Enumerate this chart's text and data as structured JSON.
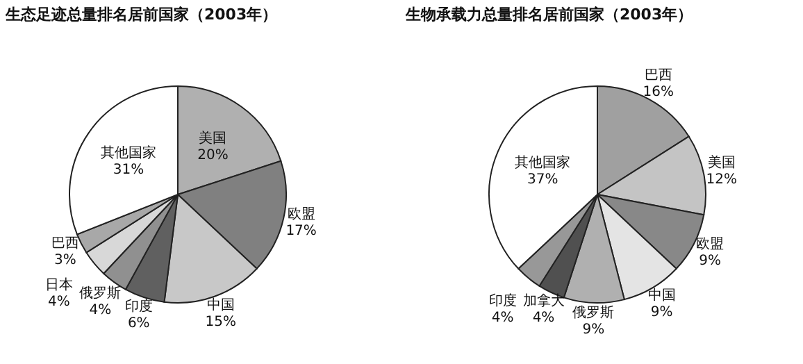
{
  "chart_data": [
    {
      "type": "pie",
      "title": "生态足迹总量排名居前国家（2003年）",
      "categories": [
        "美国",
        "欧盟",
        "中国",
        "印度",
        "俄罗斯",
        "日本",
        "巴西",
        "其他国家"
      ],
      "values": [
        20,
        17,
        15,
        6,
        4,
        4,
        3,
        31
      ],
      "value_labels": [
        "20%",
        "17%",
        "15%",
        "6%",
        "4%",
        "4%",
        "3%",
        "31%"
      ],
      "colors": [
        "#b0b0b0",
        "#808080",
        "#c8c8c8",
        "#606060",
        "#909090",
        "#d8d8d8",
        "#a8a8a8",
        "#ffffff"
      ]
    },
    {
      "type": "pie",
      "title": "生物承载力总量排名居前国家（2003年）",
      "categories": [
        "巴西",
        "美国",
        "欧盟",
        "中国",
        "俄罗斯",
        "加拿大",
        "印度",
        "其他国家"
      ],
      "values": [
        16,
        12,
        9,
        9,
        9,
        4,
        4,
        37
      ],
      "value_labels": [
        "16%",
        "12%",
        "9%",
        "9%",
        "9%",
        "4%",
        "4%",
        "37%"
      ],
      "colors": [
        "#a0a0a0",
        "#c4c4c4",
        "#888888",
        "#e4e4e4",
        "#b0b0b0",
        "#505050",
        "#989898",
        "#ffffff"
      ]
    }
  ]
}
